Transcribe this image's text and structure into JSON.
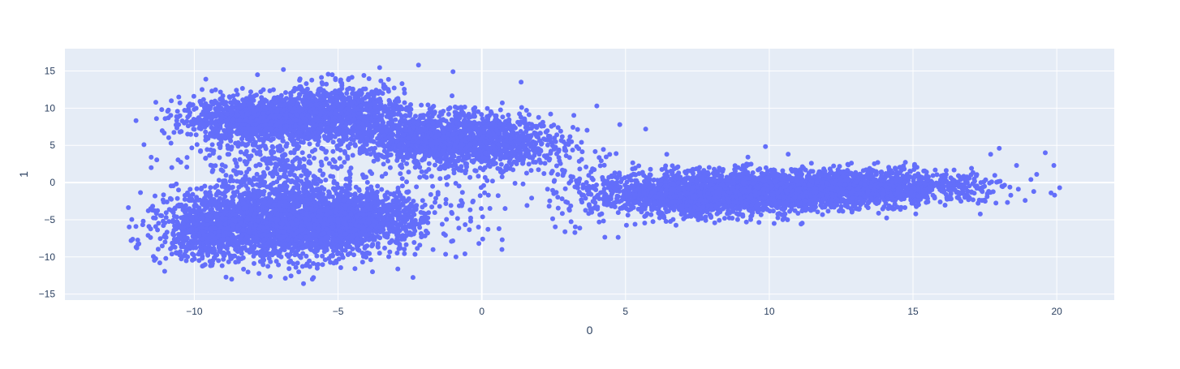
{
  "chart_data": {
    "type": "scatter",
    "title": "",
    "xlabel": "0",
    "ylabel": "1",
    "xlim": [
      -14.5,
      22.0
    ],
    "ylim": [
      -15.8,
      18.0
    ],
    "x_ticks": [
      -10,
      -5,
      0,
      5,
      10,
      15,
      20
    ],
    "x_tick_labels": [
      "−10",
      "−5",
      "0",
      "5",
      "10",
      "15",
      "20"
    ],
    "y_ticks": [
      -15,
      -10,
      -5,
      0,
      5,
      10,
      15
    ],
    "y_tick_labels": [
      "−15",
      "−10",
      "−5",
      "0",
      "5",
      "10",
      "15"
    ],
    "grid": true,
    "legend": "none",
    "colors": {
      "marker": "#636efa",
      "plot_bg": "#e5ecf6",
      "grid": "#ffffff",
      "text": "#2a3f5f"
    },
    "series": [
      {
        "clusters": [
          {
            "cx": -7.8,
            "cy": 8.5,
            "sx": 1.3,
            "sy": 1.4,
            "n": 1100
          },
          {
            "cx": -5.0,
            "cy": 9.5,
            "sx": 1.2,
            "sy": 1.8,
            "n": 900
          },
          {
            "cx": -1.5,
            "cy": 5.8,
            "sx": 1.5,
            "sy": 1.8,
            "n": 1200
          },
          {
            "cx": 0.8,
            "cy": 5.0,
            "sx": 1.2,
            "sy": 2.0,
            "n": 450
          },
          {
            "cx": -7.0,
            "cy": -5.5,
            "sx": 1.8,
            "sy": 2.4,
            "n": 2100
          },
          {
            "cx": -4.5,
            "cy": -4.8,
            "sx": 1.2,
            "sy": 2.0,
            "n": 700
          },
          {
            "cx": -9.5,
            "cy": -6.5,
            "sx": 0.9,
            "sy": 2.0,
            "n": 450
          },
          {
            "cx": -7.5,
            "cy": 1.5,
            "sx": 1.4,
            "sy": 3.0,
            "n": 400
          },
          {
            "cx": -2.5,
            "cy": -4.0,
            "sx": 1.3,
            "sy": 2.0,
            "n": 180
          },
          {
            "cx": 7.0,
            "cy": -1.6,
            "sx": 1.5,
            "sy": 1.5,
            "n": 1000
          },
          {
            "cx": 10.0,
            "cy": -1.2,
            "sx": 1.8,
            "sy": 1.4,
            "n": 1500
          },
          {
            "cx": 13.5,
            "cy": -0.6,
            "sx": 1.5,
            "sy": 1.2,
            "n": 900
          },
          {
            "cx": 16.3,
            "cy": -0.6,
            "sx": 1.0,
            "sy": 1.0,
            "n": 120
          },
          {
            "cx": 3.8,
            "cy": -1.5,
            "sx": 1.2,
            "sy": 2.5,
            "n": 120
          }
        ],
        "points": [
          [
            -12.2,
            -7.8
          ],
          [
            -12.0,
            -8.8
          ],
          [
            -11.6,
            -3.8
          ],
          [
            -11.5,
            3.4
          ],
          [
            -11.5,
            2.0
          ],
          [
            -11.2,
            -10.8
          ],
          [
            -10.8,
            11.0
          ],
          [
            -10.5,
            6.8
          ],
          [
            -9.6,
            13.9
          ],
          [
            -8.7,
            -13.0
          ],
          [
            -7.8,
            14.5
          ],
          [
            -6.9,
            15.2
          ],
          [
            -6.2,
            -13.6
          ],
          [
            -5.2,
            14.5
          ],
          [
            -4.1,
            14.4
          ],
          [
            -3.8,
            -12.0
          ],
          [
            -2.2,
            15.8
          ],
          [
            -1.0,
            14.9
          ],
          [
            -0.9,
            -10.0
          ],
          [
            -0.1,
            -8.2
          ],
          [
            0.7,
            -9.0
          ],
          [
            0.6,
            -6.2
          ],
          [
            4.0,
            10.3
          ],
          [
            4.8,
            7.8
          ],
          [
            5.7,
            7.2
          ],
          [
            17.7,
            3.8
          ],
          [
            18.0,
            4.6
          ],
          [
            18.6,
            2.3
          ],
          [
            18.4,
            -1.7
          ],
          [
            19.2,
            -1.2
          ],
          [
            19.6,
            4.0
          ],
          [
            19.9,
            2.3
          ],
          [
            20.1,
            -0.7
          ],
          [
            19.8,
            -1.4
          ],
          [
            19.1,
            0.4
          ],
          [
            19.3,
            1.1
          ],
          [
            18.9,
            -2.4
          ],
          [
            17.4,
            -2.4
          ],
          [
            16.8,
            -2.0
          ],
          [
            17.2,
            0.9
          ]
        ]
      }
    ]
  }
}
